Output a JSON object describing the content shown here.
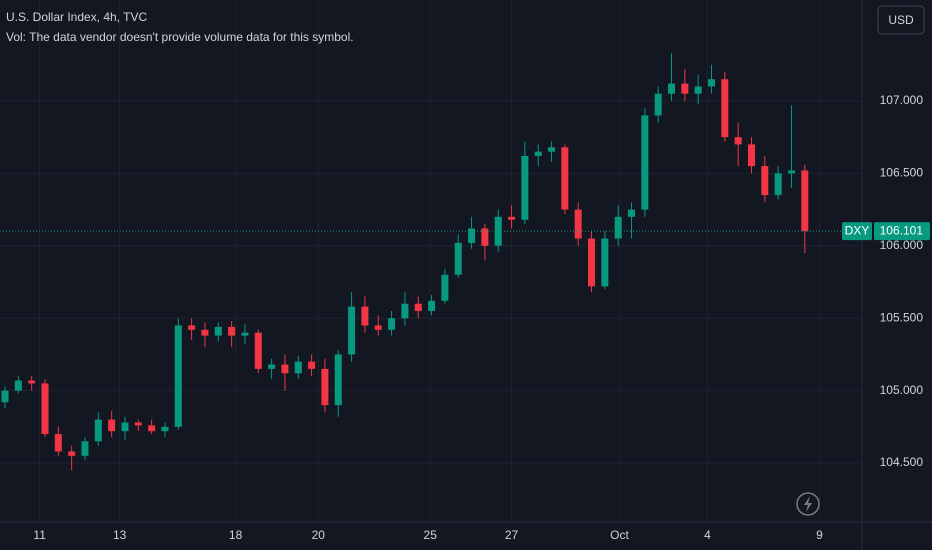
{
  "chart_data": {
    "type": "candlestick",
    "title": "U.S. Dollar Index, 4h, TVC",
    "subtitle": "Vol: The data vendor doesn't provide volume data for this symbol.",
    "currency": "USD",
    "symbol": "DXY",
    "last_price": 106.101,
    "up_color": "#089981",
    "down_color": "#f23645",
    "grid": true,
    "open": [
      104.92,
      105.0,
      105.07,
      105.05,
      104.7,
      104.58,
      104.55,
      104.65,
      104.8,
      104.72,
      104.78,
      104.76,
      104.72,
      104.75,
      105.45,
      105.42,
      105.38,
      105.44,
      105.38,
      105.4,
      105.15,
      105.18,
      105.12,
      105.2,
      105.15,
      104.9,
      105.25,
      105.58,
      105.45,
      105.42,
      105.5,
      105.6,
      105.55,
      105.62,
      105.8,
      106.02,
      106.12,
      106.0,
      106.2,
      106.18,
      106.62,
      106.65,
      106.68,
      106.25,
      106.05,
      105.72,
      106.05,
      106.2,
      106.25,
      106.9,
      107.05,
      107.12,
      107.05,
      107.1,
      107.15,
      106.75,
      106.7,
      106.55,
      106.35,
      106.5,
      106.52
    ],
    "high": [
      105.03,
      105.1,
      105.1,
      105.08,
      104.75,
      104.62,
      104.68,
      104.85,
      104.86,
      104.82,
      104.8,
      104.8,
      104.78,
      105.5,
      105.5,
      105.47,
      105.47,
      105.48,
      105.46,
      105.42,
      105.22,
      105.25,
      105.24,
      105.25,
      105.22,
      105.28,
      105.68,
      105.65,
      105.52,
      105.55,
      105.68,
      105.65,
      105.66,
      105.84,
      106.08,
      106.2,
      106.15,
      106.25,
      106.28,
      106.72,
      106.7,
      106.72,
      106.7,
      106.3,
      106.1,
      106.1,
      106.28,
      106.3,
      106.95,
      107.1,
      107.33,
      107.22,
      107.18,
      107.25,
      107.2,
      106.85,
      106.75,
      106.62,
      106.55,
      106.97,
      106.56
    ],
    "low": [
      104.88,
      104.98,
      105.0,
      104.68,
      104.55,
      104.45,
      104.52,
      104.62,
      104.68,
      104.66,
      104.72,
      104.7,
      104.68,
      104.73,
      105.35,
      105.3,
      105.34,
      105.3,
      105.32,
      105.12,
      105.08,
      105.0,
      105.08,
      105.1,
      104.85,
      104.82,
      105.2,
      105.4,
      105.38,
      105.38,
      105.45,
      105.5,
      105.52,
      105.6,
      105.78,
      105.98,
      105.9,
      105.96,
      106.12,
      106.15,
      106.55,
      106.58,
      106.22,
      106.0,
      105.68,
      105.7,
      106.0,
      106.05,
      106.2,
      106.85,
      107.0,
      107.0,
      106.98,
      107.05,
      106.72,
      106.55,
      106.5,
      106.3,
      106.32,
      106.4,
      105.95
    ],
    "close": [
      105.0,
      105.07,
      105.05,
      104.7,
      104.58,
      104.55,
      104.65,
      104.8,
      104.72,
      104.78,
      104.76,
      104.72,
      104.75,
      105.45,
      105.42,
      105.38,
      105.44,
      105.38,
      105.4,
      105.15,
      105.18,
      105.12,
      105.2,
      105.15,
      104.9,
      105.25,
      105.58,
      105.45,
      105.42,
      105.5,
      105.6,
      105.55,
      105.62,
      105.8,
      106.02,
      106.12,
      106.0,
      106.2,
      106.18,
      106.62,
      106.65,
      106.68,
      106.25,
      106.05,
      105.72,
      106.05,
      106.2,
      106.25,
      106.9,
      107.05,
      107.12,
      107.05,
      107.1,
      107.15,
      106.75,
      106.7,
      106.55,
      106.35,
      106.5,
      106.52,
      106.101
    ],
    "xlim": [
      -0.375,
      64.29
    ],
    "xticks": [
      {
        "value": 2.6,
        "label": "11"
      },
      {
        "value": 8.6,
        "label": "13"
      },
      {
        "value": 17.3,
        "label": "18"
      },
      {
        "value": 23.5,
        "label": "20"
      },
      {
        "value": 31.9,
        "label": "25"
      },
      {
        "value": 38,
        "label": "27"
      },
      {
        "value": 46.1,
        "label": "Oct"
      },
      {
        "value": 52.7,
        "label": "4"
      },
      {
        "value": 61.1,
        "label": "9"
      }
    ],
    "ylim": [
      104.093,
      107.697
    ],
    "yticks": [
      {
        "value": 104.5,
        "label": "104.500"
      },
      {
        "value": 105,
        "label": "105.000"
      },
      {
        "value": 105.5,
        "label": "105.500"
      },
      {
        "value": 106,
        "label": "106.000"
      },
      {
        "value": 106.5,
        "label": "106.500"
      },
      {
        "value": 107,
        "label": "107.000"
      }
    ]
  }
}
